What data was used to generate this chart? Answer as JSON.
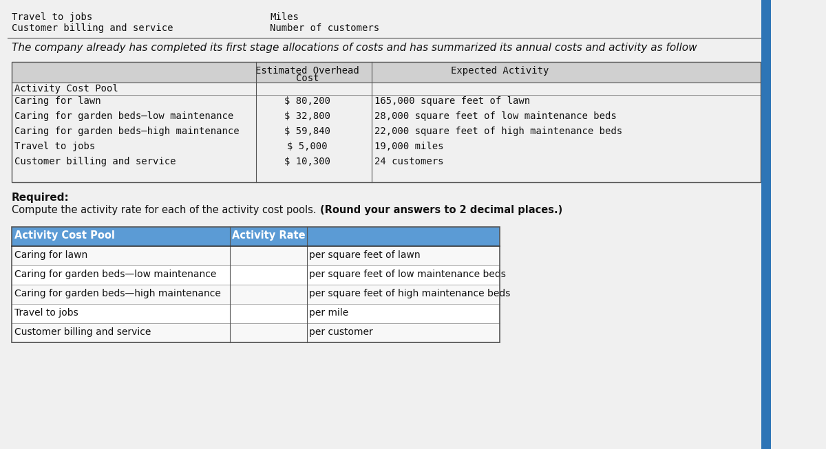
{
  "bg_color": "#e8e8e8",
  "page_bg": "#f0f0f0",
  "top_lines": [
    [
      "Travel to jobs",
      "Miles"
    ],
    [
      "Customer billing and service",
      "Number of customers"
    ]
  ],
  "intro_text": "The company already has completed its first stage allocations of costs and has summarized its annual costs and activity as follow",
  "table1_header": [
    "Activity Cost Pool",
    "Estimated Overhead\nCost",
    "Expected Activity"
  ],
  "table1_rows": [
    [
      "Caring for lawn",
      "$ 80,200",
      "165,000 square feet of lawn"
    ],
    [
      "Caring for garden beds–low maintenance",
      "$ 32,800",
      "28,000 square feet of low maintenance beds"
    ],
    [
      "Caring for garden beds–high maintenance",
      "$ 59,840",
      "22,000 square feet of high maintenance beds"
    ],
    [
      "Travel to jobs",
      "$ 5,000",
      "19,000 miles"
    ],
    [
      "Customer billing and service",
      "$ 10,300",
      "24 customers"
    ]
  ],
  "required_text": "Required:",
  "required_desc": "Compute the activity rate for each of the activity cost pools. ",
  "required_bold": "(Round your answers to 2 decimal places.)",
  "table2_header": [
    "Activity Cost Pool",
    "Activity Rate",
    ""
  ],
  "table2_rows": [
    [
      "Caring for lawn",
      "",
      "per square feet of lawn"
    ],
    [
      "Caring for garden beds—low maintenance",
      "",
      "per square feet of low maintenance beds"
    ],
    [
      "Caring for garden beds—high maintenance",
      "",
      "per square feet of high maintenance beds"
    ],
    [
      "Travel to jobs",
      "",
      "per mile"
    ],
    [
      "Customer billing and service",
      "",
      "per customer"
    ]
  ],
  "header_bg": "#5b9bd5",
  "header_text_color": "#ffffff",
  "row_bg_odd": "#ffffff",
  "row_bg_even": "#f5f5f5",
  "border_color": "#333333",
  "font_family": "monospace",
  "font_size": 10,
  "title_font_size": 11
}
